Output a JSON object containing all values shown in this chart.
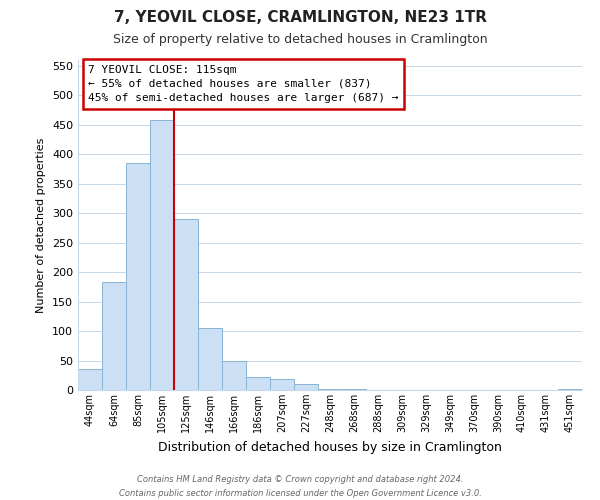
{
  "title": "7, YEOVIL CLOSE, CRAMLINGTON, NE23 1TR",
  "subtitle": "Size of property relative to detached houses in Cramlington",
  "xlabel": "Distribution of detached houses by size in Cramlington",
  "ylabel": "Number of detached properties",
  "bar_labels": [
    "44sqm",
    "64sqm",
    "85sqm",
    "105sqm",
    "125sqm",
    "146sqm",
    "166sqm",
    "186sqm",
    "207sqm",
    "227sqm",
    "248sqm",
    "268sqm",
    "288sqm",
    "309sqm",
    "329sqm",
    "349sqm",
    "370sqm",
    "390sqm",
    "410sqm",
    "431sqm",
    "451sqm"
  ],
  "bar_values": [
    35,
    183,
    385,
    458,
    290,
    105,
    50,
    22,
    18,
    10,
    1,
    1,
    0,
    0,
    0,
    0,
    0,
    0,
    0,
    0,
    1
  ],
  "bar_color": "#cce0f5",
  "bar_edge_color": "#8ab4d4",
  "property_line_color": "#cc0000",
  "property_line_index": 3.5,
  "ylim": [
    0,
    560
  ],
  "yticks": [
    0,
    50,
    100,
    150,
    200,
    250,
    300,
    350,
    400,
    450,
    500,
    550
  ],
  "annotation_title": "7 YEOVIL CLOSE: 115sqm",
  "annotation_line1": "← 55% of detached houses are smaller (837)",
  "annotation_line2": "45% of semi-detached houses are larger (687) →",
  "annotation_box_color": "#ffffff",
  "annotation_box_edge": "#cc0000",
  "footer_line1": "Contains HM Land Registry data © Crown copyright and database right 2024.",
  "footer_line2": "Contains public sector information licensed under the Open Government Licence v3.0.",
  "background_color": "#ffffff",
  "grid_color": "#c8d8ec"
}
